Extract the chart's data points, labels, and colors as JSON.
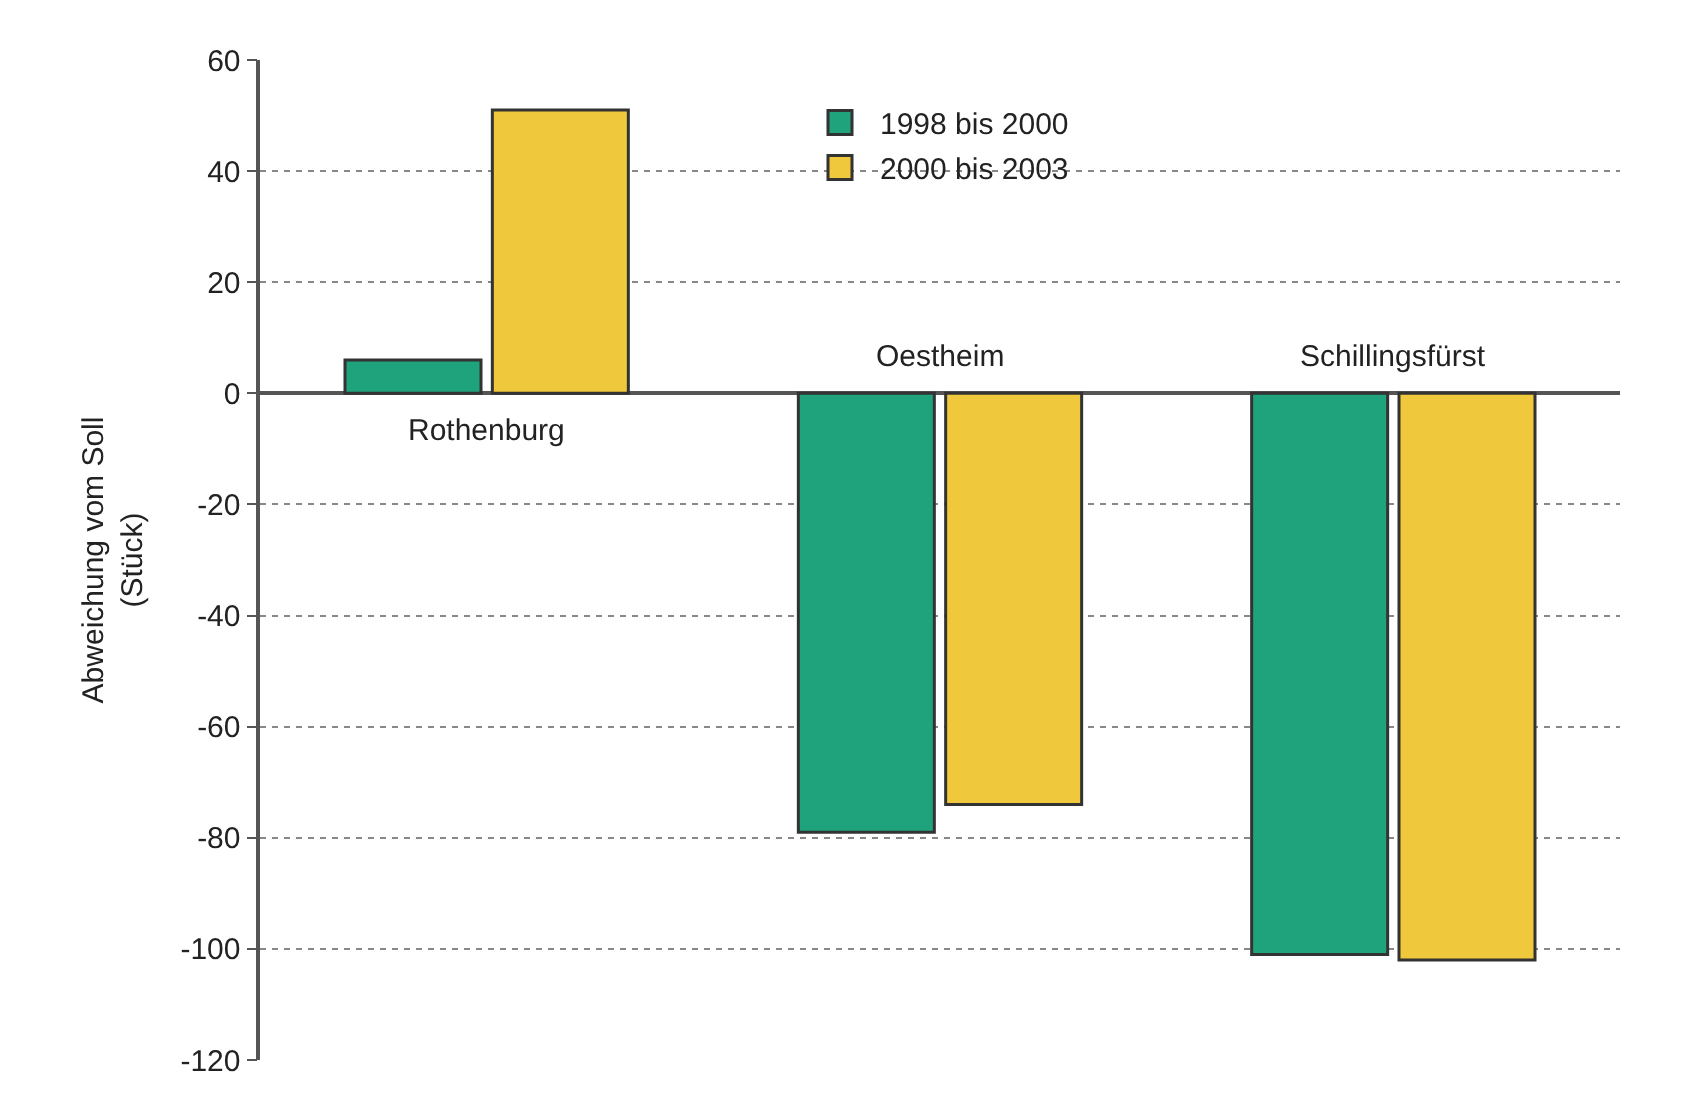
{
  "chart_data": {
    "type": "bar",
    "ylabel": "Abweichung vom Soll\n(Stück)",
    "categories": [
      "Rothenburg",
      "Oestheim",
      "Schillingsfürst"
    ],
    "series": [
      {
        "name": "1998 bis 2000",
        "color": "#1ea37c",
        "values": [
          6,
          -79,
          -101
        ]
      },
      {
        "name": "2000 bis 2003",
        "color": "#f0c83c",
        "values": [
          51,
          -74,
          -102
        ]
      }
    ],
    "ylim": [
      -120,
      60
    ],
    "yticks": [
      -120,
      -100,
      -80,
      -60,
      -40,
      -20,
      0,
      20,
      40,
      60
    ],
    "grid": "y",
    "legend": "top",
    "tick_labels": "y"
  }
}
